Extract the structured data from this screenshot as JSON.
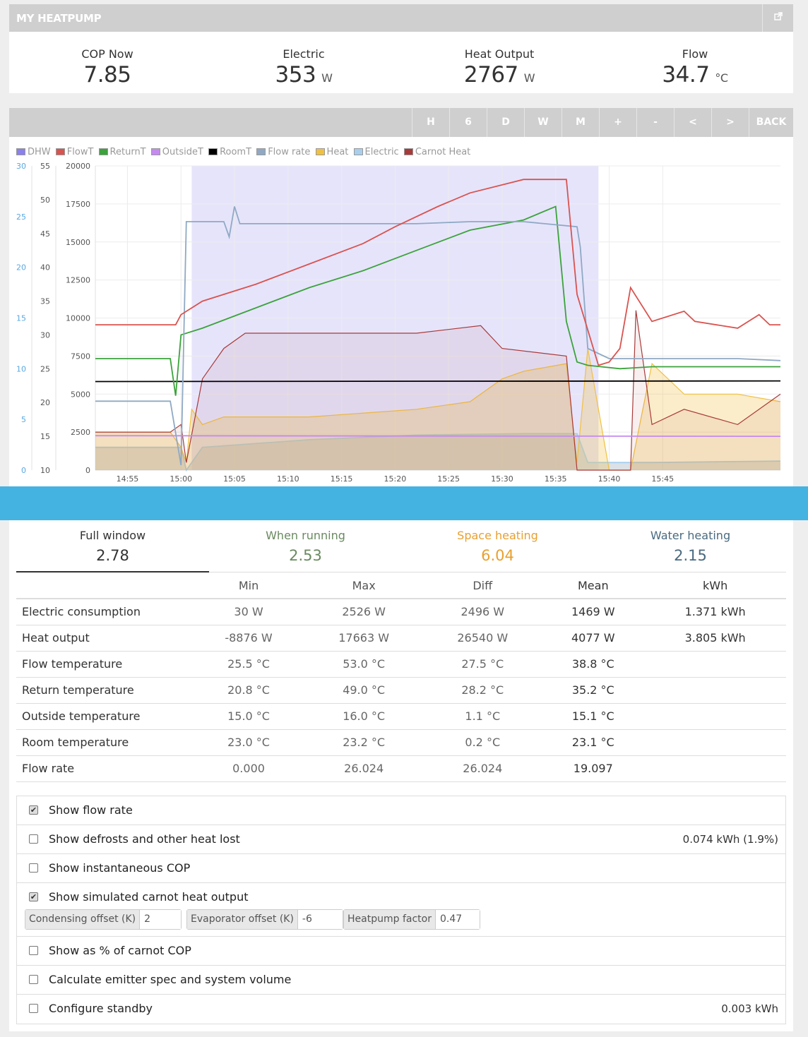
{
  "header": {
    "title": "MY HEATPUMP",
    "external_icon": "external-link-icon"
  },
  "stats": [
    {
      "label": "COP Now",
      "value": "7.85",
      "unit": ""
    },
    {
      "label": "Electric",
      "value": "353",
      "unit": "W"
    },
    {
      "label": "Heat Output",
      "value": "2767",
      "unit": "W"
    },
    {
      "label": "Flow",
      "value": "34.7",
      "unit": "°C"
    }
  ],
  "toolbar": {
    "buttons": [
      "H",
      "6",
      "D",
      "W",
      "M",
      "+",
      "-",
      "<",
      ">",
      "BACK"
    ]
  },
  "legend": [
    {
      "name": "DHW",
      "color": "#8a80ee"
    },
    {
      "name": "FlowT",
      "color": "#d9534f"
    },
    {
      "name": "ReturnT",
      "color": "#3ba33b"
    },
    {
      "name": "OutsideT",
      "color": "#c58af0"
    },
    {
      "name": "RoomT",
      "color": "#000000"
    },
    {
      "name": "Flow rate",
      "color": "#8fa9c4"
    },
    {
      "name": "Heat",
      "color": "#f0c040"
    },
    {
      "name": "Electric",
      "color": "#a8cfee"
    },
    {
      "name": "Carnot Heat",
      "color": "#a83a3a"
    }
  ],
  "chart_data": {
    "type": "line",
    "x_ticks": [
      "14:55",
      "15:00",
      "15:05",
      "15:10",
      "15:15",
      "15:20",
      "15:25",
      "15:30",
      "15:35",
      "15:40",
      "15:45"
    ],
    "y_axes": [
      {
        "ticks": [
          "0",
          "5",
          "10",
          "15",
          "20",
          "25",
          "30"
        ],
        "range": [
          0,
          30
        ],
        "color": "#5aa8e0"
      },
      {
        "ticks": [
          "10",
          "15",
          "20",
          "25",
          "30",
          "35",
          "40",
          "45",
          "50",
          "55"
        ],
        "range": [
          10,
          55
        ],
        "color": "#555555"
      },
      {
        "ticks": [
          "0",
          "2500",
          "5000",
          "7500",
          "10000",
          "12500",
          "15000",
          "17500",
          "20000"
        ],
        "range": [
          0,
          20000
        ],
        "color": "#555555"
      }
    ],
    "running_region": [
      "15:01",
      "15:39"
    ],
    "series": [
      {
        "name": "FlowT",
        "axis": 1,
        "x": [
          0,
          5,
          7.5,
          8,
          10,
          15,
          20,
          25,
          28,
          32,
          35,
          40,
          44,
          45,
          47,
          48,
          49,
          50,
          52,
          55,
          56,
          60,
          62,
          63,
          64
        ],
        "y": [
          31.5,
          31.5,
          31.5,
          33,
          35,
          37.5,
          40.5,
          43.5,
          46,
          49,
          51,
          53,
          53,
          36,
          25.5,
          26,
          28,
          37,
          32,
          33.5,
          32,
          31,
          33,
          31.5,
          31.5
        ]
      },
      {
        "name": "ReturnT",
        "axis": 1,
        "x": [
          0,
          7,
          7.5,
          8,
          10,
          15,
          20,
          25,
          30,
          35,
          40,
          43,
          44,
          45,
          46,
          49,
          52,
          55,
          60,
          64
        ],
        "y": [
          26.5,
          26.5,
          21,
          30,
          31,
          34,
          37,
          39.5,
          42.5,
          45.5,
          47,
          49,
          32,
          26,
          25.5,
          25,
          25.3,
          25.3,
          25.3,
          25.3
        ]
      },
      {
        "name": "Flow rate",
        "axis": 0,
        "x": [
          0,
          7,
          8,
          8.5,
          9,
          12,
          12.5,
          13,
          13.5,
          14,
          20,
          30,
          35,
          40,
          45,
          45.3,
          46,
          48,
          49,
          50,
          52,
          60,
          64
        ],
        "y": [
          6.8,
          6.8,
          0.5,
          24.5,
          24.5,
          24.5,
          23,
          26,
          24.3,
          24.3,
          24.3,
          24.3,
          24.5,
          24.5,
          24,
          22,
          12,
          11,
          11,
          11,
          11,
          11,
          10.8
        ]
      },
      {
        "name": "RoomT",
        "axis": 1,
        "x": [
          0,
          64
        ],
        "y": [
          23.1,
          23.2
        ]
      },
      {
        "name": "OutsideT",
        "axis": 1,
        "x": [
          0,
          64
        ],
        "y": [
          15.1,
          15.0
        ]
      },
      {
        "name": "Heat",
        "axis": 2,
        "x": [
          0,
          7,
          8,
          8.5,
          9,
          10,
          12,
          20,
          30,
          35,
          38,
          40,
          44,
          45,
          46,
          48,
          49,
          50,
          52,
          55,
          60,
          64
        ],
        "y": [
          2500,
          2500,
          1500,
          500,
          4000,
          3000,
          3500,
          3500,
          4000,
          4500,
          6000,
          6500,
          7000,
          500,
          8000,
          0,
          0,
          0,
          7000,
          5000,
          5000,
          4500
        ]
      },
      {
        "name": "Electric",
        "axis": 2,
        "x": [
          0,
          8,
          8.5,
          10,
          20,
          30,
          40,
          45,
          46,
          49,
          52,
          64
        ],
        "y": [
          1500,
          1500,
          0,
          1500,
          2000,
          2300,
          2400,
          2400,
          500,
          500,
          500,
          600
        ]
      },
      {
        "name": "Carnot Heat",
        "axis": 2,
        "x": [
          0,
          7,
          8,
          8.5,
          10,
          12,
          14,
          20,
          30,
          36,
          38,
          44,
          45,
          46,
          50,
          50.5,
          52,
          55,
          60,
          64
        ],
        "y": [
          2500,
          2500,
          3000,
          500,
          6000,
          8000,
          9000,
          9000,
          9000,
          9500,
          8000,
          7500,
          0,
          0,
          0,
          10500,
          3000,
          4000,
          3000,
          5000
        ]
      }
    ]
  },
  "tabs": [
    {
      "label": "Full window",
      "value": "2.78",
      "color": "#333333"
    },
    {
      "label": "When running",
      "value": "2.53",
      "color": "#6a8a60"
    },
    {
      "label": "Space heating",
      "value": "6.04",
      "color": "#e8a030"
    },
    {
      "label": "Water heating",
      "value": "2.15",
      "color": "#4a6a80"
    }
  ],
  "table": {
    "headers": [
      "",
      "Min",
      "Max",
      "Diff",
      "Mean",
      "kWh"
    ],
    "rows": [
      [
        "Electric consumption",
        "30 W",
        "2526 W",
        "2496 W",
        "1469 W",
        "1.371 kWh"
      ],
      [
        "Heat output",
        "-8876 W",
        "17663 W",
        "26540 W",
        "4077 W",
        "3.805 kWh"
      ],
      [
        "Flow temperature",
        "25.5 °C",
        "53.0 °C",
        "27.5 °C",
        "38.8 °C",
        ""
      ],
      [
        "Return temperature",
        "20.8 °C",
        "49.0 °C",
        "28.2 °C",
        "35.2 °C",
        ""
      ],
      [
        "Outside temperature",
        "15.0 °C",
        "16.0 °C",
        "1.1 °C",
        "15.1 °C",
        ""
      ],
      [
        "Room temperature",
        "23.0 °C",
        "23.2 °C",
        "0.2 °C",
        "23.1 °C",
        ""
      ],
      [
        "Flow rate",
        "0.000",
        "26.024",
        "26.024",
        "19.097",
        ""
      ]
    ]
  },
  "options": [
    {
      "label": "Show flow rate",
      "checked": true,
      "right": ""
    },
    {
      "label": "Show defrosts and other heat lost",
      "checked": false,
      "right": "0.074 kWh (1.9%)"
    },
    {
      "label": "Show instantaneous COP",
      "checked": false,
      "right": ""
    },
    {
      "label": "Show simulated carnot heat output",
      "checked": true,
      "right": "",
      "inputs": [
        {
          "label": "Condensing offset (K)",
          "value": "2"
        },
        {
          "label": "Evaporator offset (K)",
          "value": "-6"
        },
        {
          "label": "Heatpump factor",
          "value": "0.47"
        }
      ]
    },
    {
      "label": "Show as % of carnot COP",
      "checked": false,
      "right": ""
    },
    {
      "label": "Calculate emitter spec and system volume",
      "checked": false,
      "right": ""
    },
    {
      "label": "Configure standby",
      "checked": false,
      "right": "0.003 kWh"
    }
  ]
}
